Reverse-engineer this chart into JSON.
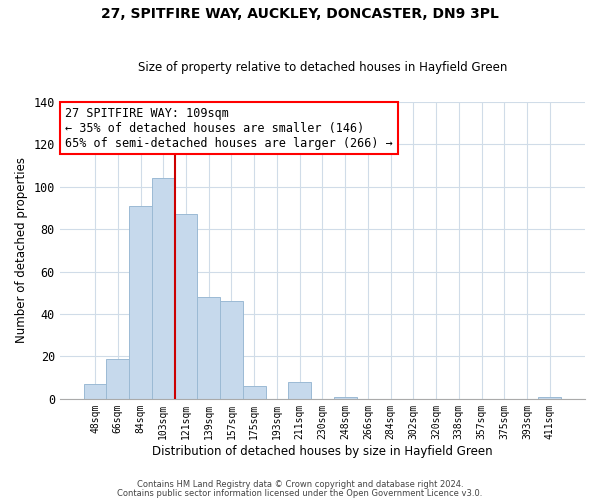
{
  "title": "27, SPITFIRE WAY, AUCKLEY, DONCASTER, DN9 3PL",
  "subtitle": "Size of property relative to detached houses in Hayfield Green",
  "xlabel": "Distribution of detached houses by size in Hayfield Green",
  "ylabel": "Number of detached properties",
  "bar_labels": [
    "48sqm",
    "66sqm",
    "84sqm",
    "103sqm",
    "121sqm",
    "139sqm",
    "157sqm",
    "175sqm",
    "193sqm",
    "211sqm",
    "230sqm",
    "248sqm",
    "266sqm",
    "284sqm",
    "302sqm",
    "320sqm",
    "338sqm",
    "357sqm",
    "375sqm",
    "393sqm",
    "411sqm"
  ],
  "bar_values": [
    7,
    19,
    91,
    104,
    87,
    48,
    46,
    6,
    0,
    8,
    0,
    1,
    0,
    0,
    0,
    0,
    0,
    0,
    0,
    0,
    1
  ],
  "bar_color": "#c6d9ec",
  "bar_edge_color": "#9bbad4",
  "vline_index": 3,
  "vline_color": "#cc0000",
  "ylim": [
    0,
    140
  ],
  "yticks": [
    0,
    20,
    40,
    60,
    80,
    100,
    120,
    140
  ],
  "annotation_title": "27 SPITFIRE WAY: 109sqm",
  "annotation_line1": "← 35% of detached houses are smaller (146)",
  "annotation_line2": "65% of semi-detached houses are larger (266) →",
  "footer1": "Contains HM Land Registry data © Crown copyright and database right 2024.",
  "footer2": "Contains public sector information licensed under the Open Government Licence v3.0.",
  "background_color": "#ffffff",
  "grid_color": "#d0dce8"
}
